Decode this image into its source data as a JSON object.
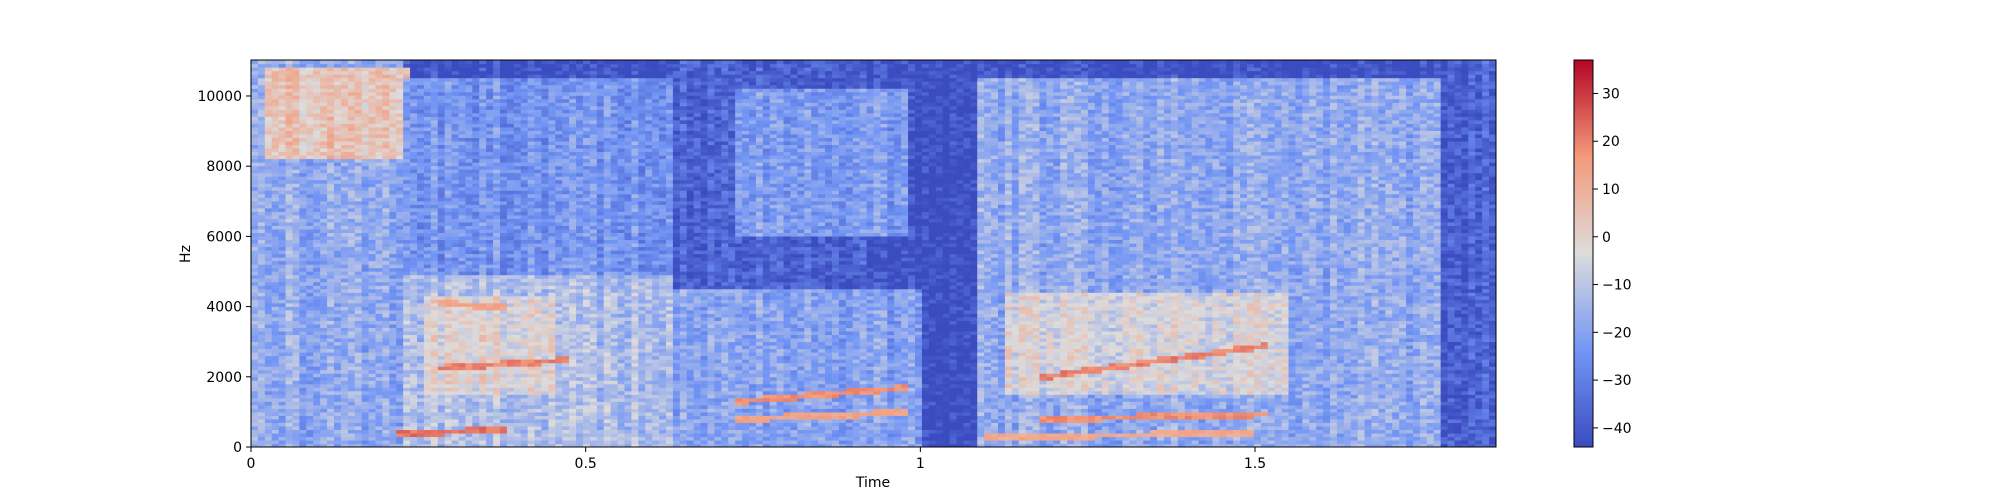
{
  "chart_data": {
    "type": "heatmap",
    "title": "",
    "xlabel": "Time",
    "ylabel": "Hz",
    "xlim": [
      0,
      1.86
    ],
    "ylim": [
      0,
      11025
    ],
    "x_ticks": [
      {
        "value": 0,
        "label": "0"
      },
      {
        "value": 0.5,
        "label": "0.5"
      },
      {
        "value": 1,
        "label": "1"
      },
      {
        "value": 1.5,
        "label": "1.5"
      }
    ],
    "y_ticks": [
      {
        "value": 0,
        "label": "0"
      },
      {
        "value": 2000,
        "label": "2000"
      },
      {
        "value": 4000,
        "label": "4000"
      },
      {
        "value": 6000,
        "label": "6000"
      },
      {
        "value": 8000,
        "label": "8000"
      },
      {
        "value": 10000,
        "label": "10000"
      }
    ],
    "colormap": "coolwarm",
    "colorbar": {
      "range": [
        -44,
        37
      ],
      "ticks": [
        {
          "value": 30,
          "label": "30"
        },
        {
          "value": 20,
          "label": "20"
        },
        {
          "value": 10,
          "label": "10"
        },
        {
          "value": 0,
          "label": "0"
        },
        {
          "value": -10,
          "label": "−10"
        },
        {
          "value": -20,
          "label": "−20"
        },
        {
          "value": -30,
          "label": "−30"
        },
        {
          "value": -40,
          "label": "−40"
        }
      ]
    },
    "regions": [
      {
        "t": [
          0.0,
          0.23
        ],
        "f": [
          0,
          11000
        ],
        "db": -18
      },
      {
        "t": [
          0.02,
          0.24
        ],
        "f": [
          8200,
          10800
        ],
        "db": 4
      },
      {
        "t": [
          0.23,
          0.63
        ],
        "f": [
          0,
          4900
        ],
        "db": -12
      },
      {
        "t": [
          0.23,
          0.63
        ],
        "f": [
          4900,
          10500
        ],
        "db": -24
      },
      {
        "t": [
          0.26,
          0.45
        ],
        "f": [
          1500,
          4300
        ],
        "db": -2
      },
      {
        "t": [
          0.63,
          1.0
        ],
        "f": [
          0,
          4500
        ],
        "db": -20
      },
      {
        "t": [
          0.63,
          0.92
        ],
        "f": [
          4500,
          11025
        ],
        "db": -38
      },
      {
        "t": [
          0.72,
          0.98
        ],
        "f": [
          6000,
          10200
        ],
        "db": -22
      },
      {
        "t": [
          1.04,
          1.08
        ],
        "f": [
          0,
          11025
        ],
        "db": -42
      },
      {
        "t": [
          1.08,
          1.78
        ],
        "f": [
          0,
          10500
        ],
        "db": -18
      },
      {
        "t": [
          1.13,
          1.55
        ],
        "f": [
          1500,
          4400
        ],
        "db": -4
      },
      {
        "t": [
          1.78,
          1.86
        ],
        "f": [
          0,
          11025
        ],
        "db": -38
      }
    ],
    "harmonic_lines": [
      {
        "t": [
          0.28,
          0.48
        ],
        "f": [
          2250,
          2500
        ],
        "db": 20
      },
      {
        "t": [
          0.28,
          0.38
        ],
        "f": [
          4100,
          4000
        ],
        "db": 14
      },
      {
        "t": [
          0.22,
          0.38
        ],
        "f": [
          400,
          500
        ],
        "db": 22
      },
      {
        "t": [
          0.72,
          0.98
        ],
        "f": [
          1300,
          1700
        ],
        "db": 18
      },
      {
        "t": [
          0.72,
          0.98
        ],
        "f": [
          800,
          1000
        ],
        "db": 14
      },
      {
        "t": [
          1.18,
          1.52
        ],
        "f": [
          2000,
          2900
        ],
        "db": 20
      },
      {
        "t": [
          1.18,
          1.52
        ],
        "f": [
          800,
          950
        ],
        "db": 18
      },
      {
        "t": [
          1.1,
          1.5
        ],
        "f": [
          300,
          400
        ],
        "db": 12
      }
    ]
  }
}
